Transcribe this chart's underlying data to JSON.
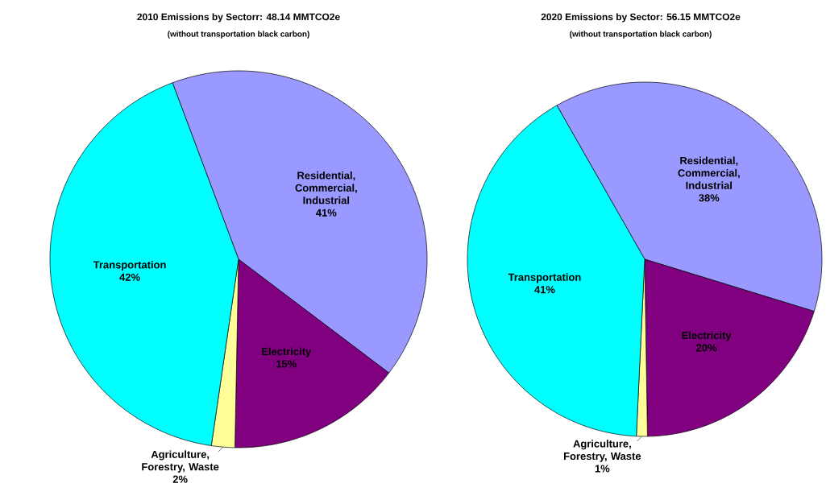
{
  "chart_data": [
    {
      "type": "pie",
      "title": "2010 Emissions by Sectorr: 48.14 MMTCO2e",
      "subtitle": "(without transportation black carbon)",
      "categories": [
        "Residential, Commercial, Industrial",
        "Electricity",
        "Agriculture, Forestry, Waste",
        "Transportation"
      ],
      "values": [
        41,
        15,
        2,
        42
      ],
      "colors": [
        "#9999ff",
        "#800080",
        "#ffff99",
        "#00ffff"
      ],
      "value_labels": [
        "41%",
        "15%",
        "2%",
        "42%"
      ]
    },
    {
      "type": "pie",
      "title": "2020 Emissions by Sector: 56.15 MMTCO2e",
      "subtitle": "(without transportation black carbon)",
      "categories": [
        "Residential, Commercial, Industrial",
        "Electricity",
        "Agriculture, Forestry, Waste",
        "Transportation"
      ],
      "values": [
        38,
        20,
        1,
        41
      ],
      "colors": [
        "#9999ff",
        "#800080",
        "#ffff99",
        "#00ffff"
      ],
      "value_labels": [
        "38%",
        "20%",
        "1%",
        "41%"
      ]
    }
  ]
}
